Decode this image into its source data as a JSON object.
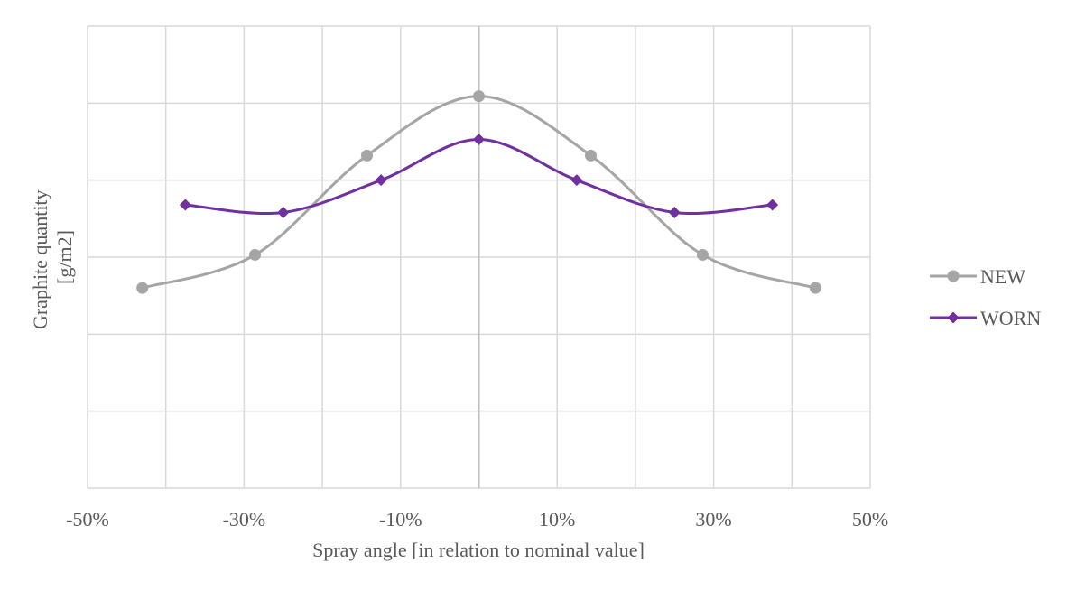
{
  "chart_data": {
    "type": "line",
    "xlabel": "Spray angle [in relation to nominal value]",
    "ylabel_lines": [
      "Graphite quantity",
      "[g/m2]"
    ],
    "xlim": [
      -0.5,
      0.5
    ],
    "ylim": [
      0,
      6
    ],
    "x_ticks": [
      -0.5,
      -0.3,
      -0.1,
      0.1,
      0.3,
      0.5
    ],
    "x_tick_labels": [
      "-50%",
      "-30%",
      "-10%",
      "10%",
      "30%",
      "50%"
    ],
    "grid": true,
    "legend_position": "right",
    "series": [
      {
        "name": "NEW",
        "color": "#A5A5A5",
        "marker": "circle",
        "points": [
          {
            "x": -0.43,
            "y": 2.6
          },
          {
            "x": -0.286,
            "y": 3.03
          },
          {
            "x": -0.143,
            "y": 4.32
          },
          {
            "x": 0.0,
            "y": 5.09
          },
          {
            "x": 0.143,
            "y": 4.32
          },
          {
            "x": 0.286,
            "y": 3.03
          },
          {
            "x": 0.43,
            "y": 2.6
          }
        ]
      },
      {
        "name": "WORN",
        "color": "#7030A0",
        "marker": "diamond",
        "points": [
          {
            "x": -0.375,
            "y": 3.68
          },
          {
            "x": -0.25,
            "y": 3.58
          },
          {
            "x": -0.125,
            "y": 4.0
          },
          {
            "x": 0.0,
            "y": 4.53
          },
          {
            "x": 0.125,
            "y": 4.0
          },
          {
            "x": 0.25,
            "y": 3.58
          },
          {
            "x": 0.375,
            "y": 3.68
          }
        ]
      }
    ]
  }
}
